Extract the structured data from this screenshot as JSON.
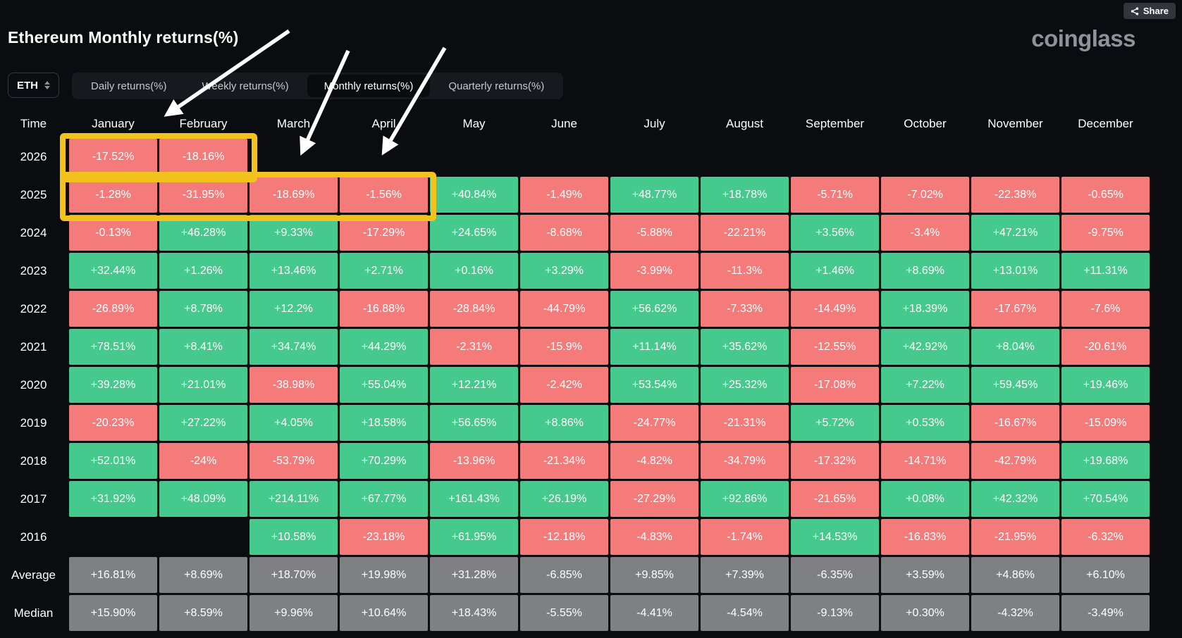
{
  "window": {
    "share_label": "Share",
    "logo_text": "coinglass"
  },
  "page": {
    "title": "Ethereum Monthly returns(%)"
  },
  "controls": {
    "symbol_select": {
      "value": "ETH"
    },
    "tabs": [
      {
        "label": "Daily returns(%)",
        "active": false
      },
      {
        "label": "Weekly returns(%)",
        "active": false
      },
      {
        "label": "Monthly returns(%)",
        "active": true
      },
      {
        "label": "Quarterly returns(%)",
        "active": false
      }
    ]
  },
  "chart_data": {
    "type": "heatmap",
    "title": "Ethereum Monthly returns(%)",
    "columns": [
      "Time",
      "January",
      "February",
      "March",
      "April",
      "May",
      "June",
      "July",
      "August",
      "September",
      "October",
      "November",
      "December"
    ],
    "rows": [
      {
        "label": "2026",
        "kind": "year",
        "values": [
          "-17.52%",
          "-18.16%",
          "",
          "",
          "",
          "",
          "",
          "",
          "",
          "",
          "",
          ""
        ]
      },
      {
        "label": "2025",
        "kind": "year",
        "values": [
          "-1.28%",
          "-31.95%",
          "-18.69%",
          "-1.56%",
          "+40.84%",
          "-1.49%",
          "+48.77%",
          "+18.78%",
          "-5.71%",
          "-7.02%",
          "-22.38%",
          "-0.65%"
        ]
      },
      {
        "label": "2024",
        "kind": "year",
        "values": [
          "-0.13%",
          "+46.28%",
          "+9.33%",
          "-17.29%",
          "+24.65%",
          "-8.68%",
          "-5.88%",
          "-22.21%",
          "+3.56%",
          "-3.4%",
          "+47.21%",
          "-9.75%"
        ]
      },
      {
        "label": "2023",
        "kind": "year",
        "values": [
          "+32.44%",
          "+1.26%",
          "+13.46%",
          "+2.71%",
          "+0.16%",
          "+3.29%",
          "-3.99%",
          "-11.3%",
          "+1.46%",
          "+8.69%",
          "+13.01%",
          "+11.31%"
        ]
      },
      {
        "label": "2022",
        "kind": "year",
        "values": [
          "-26.89%",
          "+8.78%",
          "+12.2%",
          "-16.88%",
          "-28.84%",
          "-44.79%",
          "+56.62%",
          "-7.33%",
          "-14.49%",
          "+18.39%",
          "-17.67%",
          "-7.6%"
        ]
      },
      {
        "label": "2021",
        "kind": "year",
        "values": [
          "+78.51%",
          "+8.41%",
          "+34.74%",
          "+44.29%",
          "-2.31%",
          "-15.9%",
          "+11.14%",
          "+35.62%",
          "-12.55%",
          "+42.92%",
          "+8.04%",
          "-20.61%"
        ]
      },
      {
        "label": "2020",
        "kind": "year",
        "values": [
          "+39.28%",
          "+21.01%",
          "-38.98%",
          "+55.04%",
          "+12.21%",
          "-2.42%",
          "+53.54%",
          "+25.32%",
          "-17.08%",
          "+7.22%",
          "+59.45%",
          "+19.46%"
        ]
      },
      {
        "label": "2019",
        "kind": "year",
        "values": [
          "-20.23%",
          "+27.22%",
          "+4.05%",
          "+18.58%",
          "+56.65%",
          "+8.86%",
          "-24.77%",
          "-21.31%",
          "+5.72%",
          "+0.53%",
          "-16.67%",
          "-15.09%"
        ]
      },
      {
        "label": "2018",
        "kind": "year",
        "values": [
          "+52.01%",
          "-24%",
          "-53.79%",
          "+70.29%",
          "-13.96%",
          "-21.34%",
          "-4.82%",
          "-34.79%",
          "-17.32%",
          "-14.71%",
          "-42.79%",
          "+19.68%"
        ]
      },
      {
        "label": "2017",
        "kind": "year",
        "values": [
          "+31.92%",
          "+48.09%",
          "+214.11%",
          "+67.77%",
          "+161.43%",
          "+26.19%",
          "-27.29%",
          "+92.86%",
          "-21.65%",
          "+0.08%",
          "+42.32%",
          "+70.54%"
        ]
      },
      {
        "label": "2016",
        "kind": "year",
        "values": [
          "",
          "",
          "+10.58%",
          "-23.18%",
          "+61.95%",
          "-12.18%",
          "-4.83%",
          "-1.74%",
          "+14.53%",
          "-16.83%",
          "-21.95%",
          "-6.32%"
        ]
      },
      {
        "label": "Average",
        "kind": "stat",
        "values": [
          "+16.81%",
          "+8.69%",
          "+18.70%",
          "+19.98%",
          "+31.28%",
          "-6.85%",
          "+9.85%",
          "+7.39%",
          "-6.35%",
          "+3.59%",
          "+4.86%",
          "+6.10%"
        ]
      },
      {
        "label": "Median",
        "kind": "stat",
        "values": [
          "+15.90%",
          "+8.59%",
          "+9.96%",
          "+10.64%",
          "+18.43%",
          "-5.55%",
          "-4.41%",
          "-4.54%",
          "-9.13%",
          "+0.30%",
          "-4.32%",
          "-3.49%"
        ]
      }
    ],
    "colors": {
      "positive": "#45c98c",
      "negative": "#f57b7b",
      "stat": "#7e8084",
      "highlight": "#f2c31d",
      "arrow": "#ffffff"
    }
  },
  "annotations": {
    "highlights": [
      {
        "row": "2026",
        "from": "January",
        "to": "February"
      },
      {
        "row": "2025",
        "from": "January",
        "to": "April"
      }
    ],
    "arrows": 3
  }
}
